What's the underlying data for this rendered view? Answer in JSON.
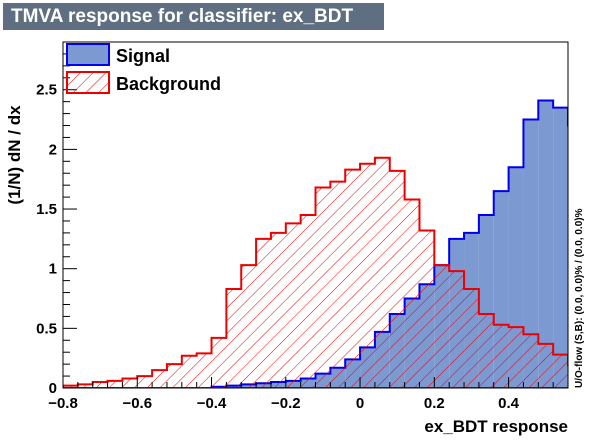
{
  "title": "TMVA response for classifier: ex_BDT",
  "side_note": "U/O-flow (S,B): (0.0, 0.0)% / (0.0, 0.0)%",
  "chart_data": {
    "type": "histogram",
    "xlabel": "ex_BDT response",
    "ylabel": "(1/N) dN / dx",
    "xlim": [
      -0.8,
      0.56
    ],
    "ylim": [
      0,
      2.9
    ],
    "bin_edges_start": -0.8,
    "bin_width": 0.04,
    "x_ticks": [
      {
        "value": -0.8,
        "label": "−0.8"
      },
      {
        "value": -0.6,
        "label": "−0.6"
      },
      {
        "value": -0.4,
        "label": "−0.4"
      },
      {
        "value": -0.2,
        "label": "−0.2"
      },
      {
        "value": 0,
        "label": "0"
      },
      {
        "value": 0.2,
        "label": "0.2"
      },
      {
        "value": 0.4,
        "label": "0.4"
      }
    ],
    "y_ticks": [
      {
        "value": 0,
        "label": "0"
      },
      {
        "value": 0.5,
        "label": "0.5"
      },
      {
        "value": 1,
        "label": "1"
      },
      {
        "value": 1.5,
        "label": "1.5"
      },
      {
        "value": 2,
        "label": "2"
      },
      {
        "value": 2.5,
        "label": "2.5"
      }
    ],
    "legend_position": "top-left",
    "series": [
      {
        "name": "Signal",
        "color": "#0000ee",
        "fill": "#7d99d1",
        "style": "solid",
        "values": [
          0,
          0,
          0,
          0,
          0,
          0,
          0,
          0,
          0,
          0,
          0.01,
          0.02,
          0.03,
          0.04,
          0.05,
          0.06,
          0.08,
          0.12,
          0.17,
          0.24,
          0.34,
          0.47,
          0.62,
          0.75,
          0.87,
          1.03,
          1.25,
          1.3,
          1.45,
          1.65,
          1.85,
          2.25,
          2.41,
          2.35,
          2.2,
          1.97,
          1.5,
          1.11,
          0.63,
          0.27,
          0.03,
          0.01,
          0.01,
          0.01
        ]
      },
      {
        "name": "Background",
        "color": "#ee0000",
        "fill": "none",
        "style": "hatched",
        "values": [
          0.02,
          0.03,
          0.05,
          0.06,
          0.08,
          0.1,
          0.15,
          0.2,
          0.27,
          0.29,
          0.42,
          0.83,
          1.03,
          1.25,
          1.3,
          1.38,
          1.45,
          1.68,
          1.73,
          1.83,
          1.88,
          1.93,
          1.82,
          1.58,
          1.32,
          1.03,
          0.98,
          0.83,
          0.62,
          0.53,
          0.51,
          0.45,
          0.37,
          0.28,
          0.19,
          0.12,
          0.08,
          0.06,
          0.04,
          0.03,
          0.02,
          0.01,
          0.01,
          0.0
        ]
      }
    ]
  }
}
